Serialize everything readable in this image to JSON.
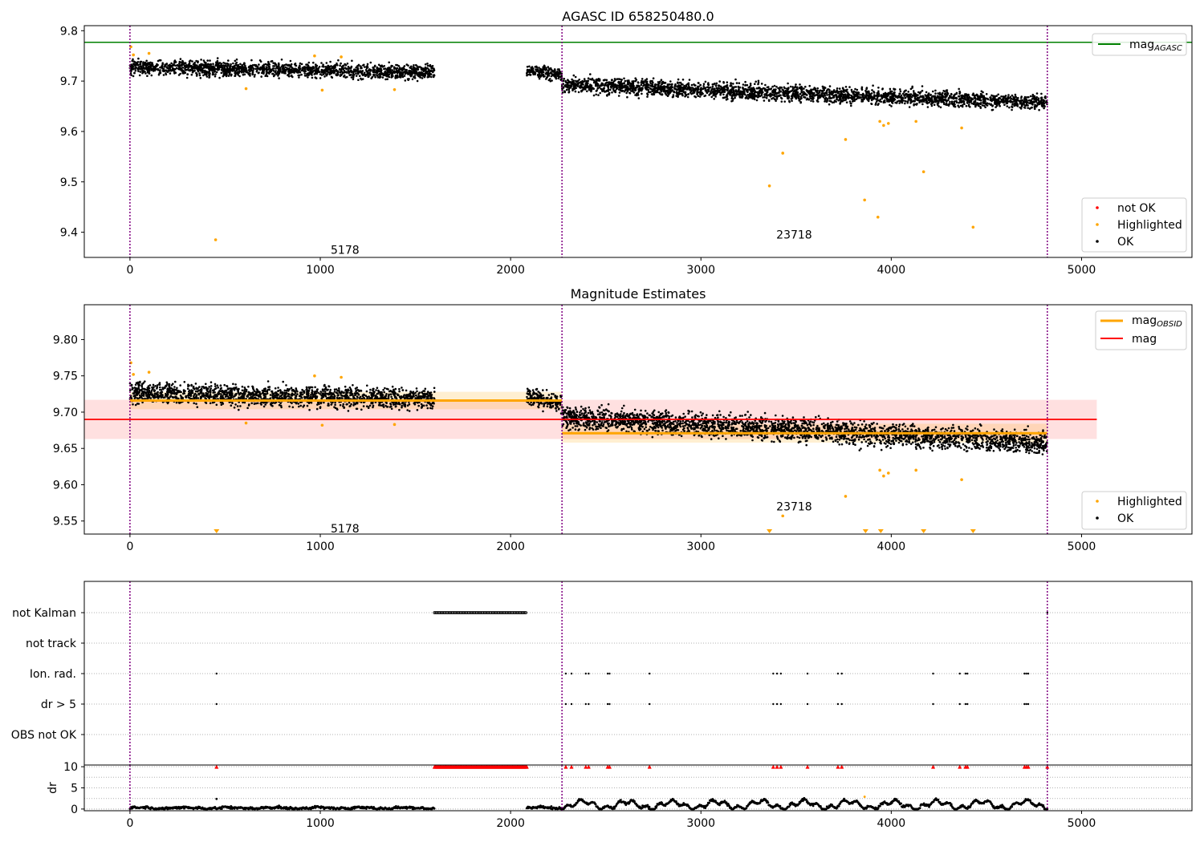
{
  "figure_title": "AGASC ID 658250480.0",
  "chart_data": [
    {
      "type": "scatter",
      "title": "AGASC ID 658250480.0",
      "xlim": [
        -240,
        5580
      ],
      "ylim": [
        9.35,
        9.81
      ],
      "xticks": [
        0,
        1000,
        2000,
        3000,
        4000,
        5000
      ],
      "yticks": [
        9.4,
        9.5,
        9.6,
        9.7,
        9.8
      ],
      "grid": false,
      "legend_upper": {
        "position": "top-right",
        "entries": [
          {
            "label": "mag",
            "subscript": "AGASC",
            "color": "#008000"
          }
        ]
      },
      "legend_lower": {
        "position": "bottom-right",
        "entries": [
          {
            "label": "not OK",
            "color": "#ff0000"
          },
          {
            "label": "Highlighted",
            "color": "#ffa500"
          },
          {
            "label": "OK",
            "color": "#000000"
          }
        ]
      },
      "mag_agasc": 9.777,
      "vlines": [
        0,
        2270,
        4820
      ],
      "annotations": [
        {
          "text": "5178",
          "x": 1130,
          "y": 9.365
        },
        {
          "text": "23718",
          "x": 3490,
          "y": 9.395
        }
      ],
      "series": [
        {
          "name": "OK",
          "segments": [
            {
              "x_start": 0,
              "x_end": 1600,
              "y_start": 9.727,
              "y_end": 9.718,
              "scatter": 0.013
            },
            {
              "x_start": 2085,
              "x_end": 2270,
              "y_start": 9.722,
              "y_end": 9.712,
              "scatter": 0.011
            },
            {
              "x_start": 2270,
              "x_end": 4820,
              "y_start": 9.693,
              "y_end": 9.657,
              "scatter": 0.014
            }
          ]
        },
        {
          "name": "Highlighted",
          "points": [
            [
              5,
              9.768
            ],
            [
              18,
              9.752
            ],
            [
              100,
              9.755
            ],
            [
              450,
              9.385
            ],
            [
              610,
              9.685
            ],
            [
              970,
              9.75
            ],
            [
              1010,
              9.682
            ],
            [
              1110,
              9.748
            ],
            [
              1390,
              9.683
            ],
            [
              3360,
              9.492
            ],
            [
              3430,
              9.557
            ],
            [
              3760,
              9.584
            ],
            [
              3860,
              9.464
            ],
            [
              3930,
              9.43
            ],
            [
              3940,
              9.62
            ],
            [
              3960,
              9.612
            ],
            [
              3985,
              9.616
            ],
            [
              4130,
              9.62
            ],
            [
              4170,
              9.52
            ],
            [
              4370,
              9.607
            ],
            [
              4430,
              9.41
            ]
          ]
        }
      ]
    },
    {
      "type": "scatter",
      "title": "Magnitude Estimates",
      "xlim": [
        -240,
        5580
      ],
      "ylim": [
        9.532,
        9.848
      ],
      "xticks": [
        0,
        1000,
        2000,
        3000,
        4000,
        5000
      ],
      "yticks": [
        9.55,
        9.6,
        9.65,
        9.7,
        9.75,
        9.8
      ],
      "grid": false,
      "legend_upper": {
        "position": "top-right",
        "entries": [
          {
            "label": "mag",
            "subscript": "OBSID",
            "color": "#ffa500"
          },
          {
            "label": "mag",
            "color": "#ff0000"
          }
        ]
      },
      "legend_lower": {
        "position": "bottom-right",
        "entries": [
          {
            "label": "Highlighted",
            "color": "#ffa500"
          },
          {
            "label": "OK",
            "color": "#000000"
          }
        ]
      },
      "mag": 9.69,
      "mag_band": [
        9.663,
        9.717
      ],
      "mag_x_range": [
        -240,
        5080
      ],
      "mag_obsid": [
        {
          "x_start": 0,
          "x_end": 2270,
          "value": 9.716,
          "band": [
            9.704,
            9.728
          ]
        },
        {
          "x_start": 2270,
          "x_end": 4820,
          "value": 9.671,
          "band": [
            9.658,
            9.684
          ]
        }
      ],
      "vlines": [
        0,
        2270,
        4820
      ],
      "annotations": [
        {
          "text": "5178",
          "x": 1130,
          "y": 9.54
        },
        {
          "text": "23718",
          "x": 3490,
          "y": 9.57
        }
      ],
      "offscale_markers_x": [
        455,
        3360,
        3865,
        3945,
        4170,
        4430
      ],
      "series": [
        {
          "name": "OK",
          "segments": [
            {
              "x_start": 0,
              "x_end": 1600,
              "y_start": 9.727,
              "y_end": 9.718,
              "scatter": 0.013
            },
            {
              "x_start": 2085,
              "x_end": 2270,
              "y_start": 9.722,
              "y_end": 9.712,
              "scatter": 0.011
            },
            {
              "x_start": 2270,
              "x_end": 4820,
              "y_start": 9.693,
              "y_end": 9.657,
              "scatter": 0.014
            }
          ]
        },
        {
          "name": "Highlighted",
          "points": [
            [
              5,
              9.768
            ],
            [
              18,
              9.752
            ],
            [
              100,
              9.755
            ],
            [
              610,
              9.685
            ],
            [
              970,
              9.75
            ],
            [
              1010,
              9.682
            ],
            [
              1110,
              9.748
            ],
            [
              1390,
              9.683
            ],
            [
              3430,
              9.557
            ],
            [
              3760,
              9.584
            ],
            [
              3940,
              9.62
            ],
            [
              3960,
              9.612
            ],
            [
              3985,
              9.616
            ],
            [
              4130,
              9.62
            ],
            [
              4370,
              9.607
            ]
          ]
        }
      ]
    },
    {
      "type": "scatter",
      "title": "",
      "xlim": [
        -240,
        5580
      ],
      "categories": [
        "not Kalman",
        "not track",
        "Ion. rad.",
        "dr > 5",
        "OBS not OK"
      ],
      "vlines": [
        0,
        2270,
        4820
      ],
      "grid": true,
      "flags": {
        "not Kalman": {
          "ranges": [
            [
              1600,
              2085
            ]
          ],
          "points": [
            4820
          ]
        },
        "not track": {
          "ranges": [],
          "points": []
        },
        "Ion. rad.": {
          "ranges": [],
          "points": [
            455,
            2290,
            2320,
            2395,
            2410,
            2510,
            2520,
            2730,
            3380,
            3400,
            3420,
            3560,
            3720,
            3740,
            4220,
            4360,
            4390,
            4400,
            4700,
            4710,
            4720
          ]
        },
        "dr > 5": {
          "ranges": [],
          "points": [
            455,
            2290,
            2320,
            2395,
            2410,
            2510,
            2520,
            2730,
            3380,
            3400,
            3420,
            3560,
            3720,
            3740,
            4220,
            4360,
            4390,
            4400,
            4700,
            4710,
            4720
          ]
        },
        "OBS not OK": {
          "ranges": [],
          "points": []
        }
      }
    },
    {
      "type": "scatter",
      "title": "",
      "ylabel": "dr",
      "xlim": [
        -240,
        5580
      ],
      "ylim": [
        -0.4,
        10.4
      ],
      "xticks": [
        0,
        1000,
        2000,
        3000,
        4000,
        5000
      ],
      "yticks": [
        0,
        5,
        10
      ],
      "grid": true,
      "vlines": [
        0,
        2270,
        4820
      ],
      "clipped_markers": {
        "value": 10,
        "ranges": [
          [
            1600,
            2085
          ]
        ],
        "points": [
          455,
          2290,
          2320,
          2395,
          2410,
          2510,
          2520,
          2730,
          3380,
          3400,
          3420,
          3560,
          3720,
          3740,
          4220,
          4360,
          4390,
          4400,
          4700,
          4710,
          4720,
          4820
        ]
      },
      "dr_segments": [
        {
          "x_start": 0,
          "x_end": 1600,
          "level": 0.25,
          "wave": 0.15
        },
        {
          "x_start": 2085,
          "x_end": 2270,
          "level": 0.3,
          "wave": 0.15
        },
        {
          "x_start": 2270,
          "x_end": 4820,
          "level": 1.0,
          "wave": 0.8
        }
      ],
      "dr_outliers": [
        [
          455,
          2.4
        ],
        [
          3860,
          2.9
        ]
      ]
    }
  ]
}
